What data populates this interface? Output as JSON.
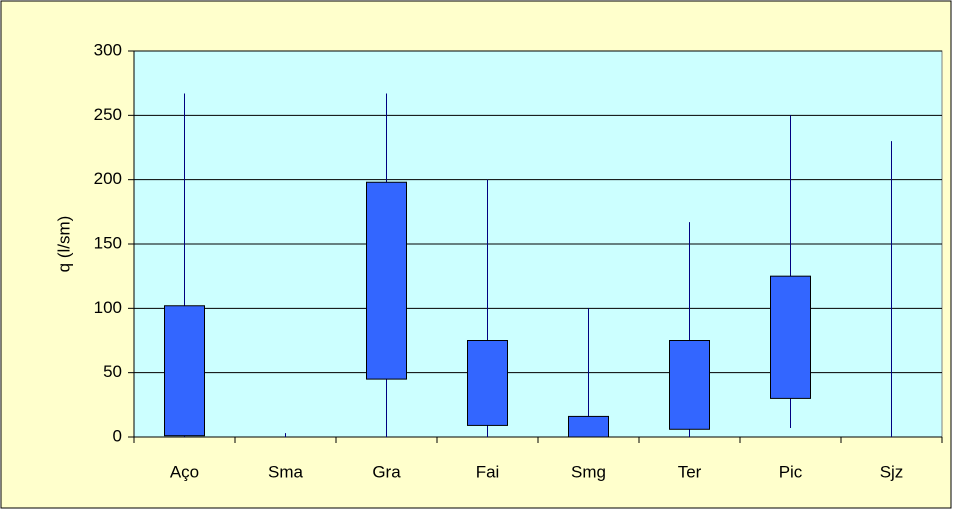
{
  "chart_data": {
    "type": "box",
    "categories": [
      "Aço",
      "Sma",
      "Gra",
      "Fai",
      "Smg",
      "Ter",
      "Pic",
      "Sjz"
    ],
    "min": [
      0,
      0,
      0,
      0,
      0,
      0,
      7,
      0
    ],
    "q1": [
      1,
      0,
      45,
      9,
      0,
      6,
      30,
      0
    ],
    "q3": [
      102,
      0,
      198,
      75,
      16,
      75,
      125,
      0
    ],
    "max": [
      267,
      3,
      267,
      200,
      100,
      167,
      250,
      230
    ],
    "box_color": "#3366ff",
    "whisker_color": "#000080",
    "y_label": "q (l/sm)",
    "ylim": [
      0,
      300
    ],
    "yticks": [
      0,
      50,
      100,
      150,
      200,
      250,
      300
    ],
    "grid": true
  }
}
